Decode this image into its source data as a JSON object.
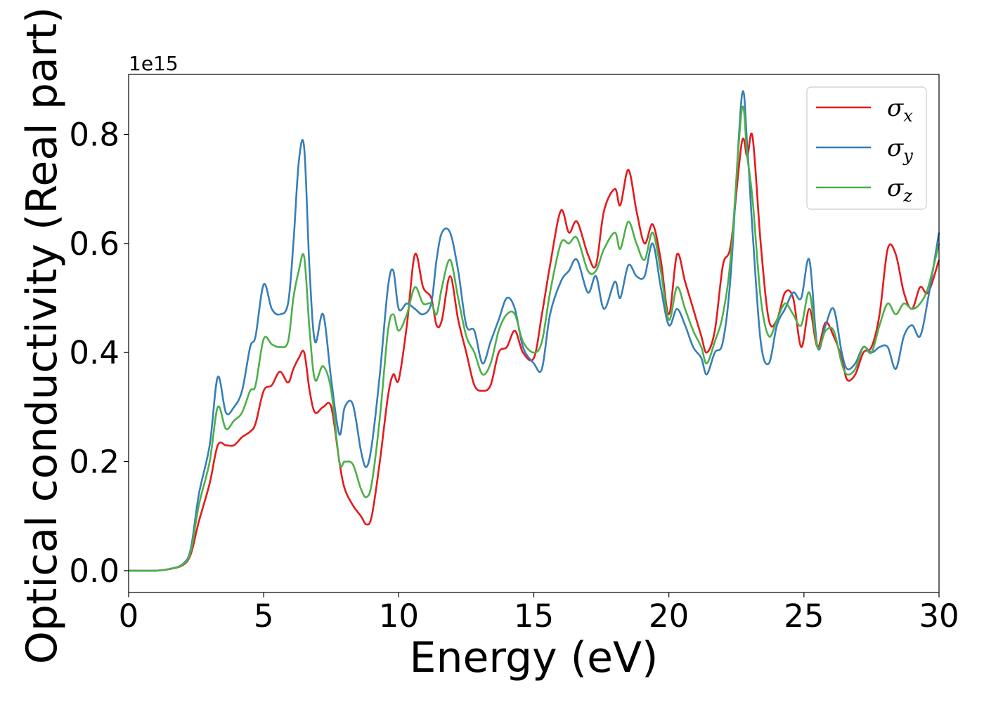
{
  "chart_data": {
    "type": "line",
    "title": "",
    "xlabel": "Energy (eV)",
    "ylabel": "Optical conductivity (Real part)",
    "y_offset_label": "1e15",
    "xlim": [
      0,
      30
    ],
    "ylim": [
      -0.04,
      0.91
    ],
    "xticks": [
      0,
      5,
      10,
      15,
      20,
      25,
      30
    ],
    "xtick_labels": [
      "0",
      "5",
      "10",
      "15",
      "20",
      "25",
      "30"
    ],
    "yticks": [
      0.0,
      0.2,
      0.4,
      0.6,
      0.8
    ],
    "ytick_labels": [
      "0.0",
      "0.2",
      "0.4",
      "0.6",
      "0.8"
    ],
    "grid": false,
    "legend_position": "top-right",
    "series": [
      {
        "name": "σx",
        "legend_base": "σ",
        "legend_sub": "x",
        "color": "#e41a1c",
        "points": [
          [
            0,
            0
          ],
          [
            1,
            0.0
          ],
          [
            1.5,
            0.003
          ],
          [
            2.0,
            0.01
          ],
          [
            2.3,
            0.03
          ],
          [
            2.6,
            0.09
          ],
          [
            3.0,
            0.16
          ],
          [
            3.3,
            0.23
          ],
          [
            3.6,
            0.23
          ],
          [
            3.9,
            0.23
          ],
          [
            4.2,
            0.245
          ],
          [
            4.5,
            0.255
          ],
          [
            4.7,
            0.27
          ],
          [
            5.0,
            0.33
          ],
          [
            5.3,
            0.34
          ],
          [
            5.6,
            0.365
          ],
          [
            5.9,
            0.345
          ],
          [
            6.1,
            0.37
          ],
          [
            6.3,
            0.39
          ],
          [
            6.5,
            0.4
          ],
          [
            6.7,
            0.33
          ],
          [
            6.9,
            0.29
          ],
          [
            7.2,
            0.3
          ],
          [
            7.5,
            0.3
          ],
          [
            7.8,
            0.2
          ],
          [
            8.0,
            0.15
          ],
          [
            8.3,
            0.12
          ],
          [
            8.6,
            0.1
          ],
          [
            8.8,
            0.085
          ],
          [
            9.0,
            0.1
          ],
          [
            9.3,
            0.2
          ],
          [
            9.6,
            0.32
          ],
          [
            9.8,
            0.36
          ],
          [
            10.0,
            0.35
          ],
          [
            10.3,
            0.45
          ],
          [
            10.6,
            0.58
          ],
          [
            10.9,
            0.52
          ],
          [
            11.2,
            0.5
          ],
          [
            11.4,
            0.45
          ],
          [
            11.6,
            0.46
          ],
          [
            11.9,
            0.54
          ],
          [
            12.2,
            0.46
          ],
          [
            12.5,
            0.4
          ],
          [
            12.8,
            0.34
          ],
          [
            13.1,
            0.33
          ],
          [
            13.4,
            0.34
          ],
          [
            13.7,
            0.4
          ],
          [
            14.0,
            0.41
          ],
          [
            14.3,
            0.44
          ],
          [
            14.6,
            0.4
          ],
          [
            15.0,
            0.39
          ],
          [
            15.3,
            0.47
          ],
          [
            15.6,
            0.56
          ],
          [
            16.0,
            0.66
          ],
          [
            16.3,
            0.62
          ],
          [
            16.6,
            0.64
          ],
          [
            17.0,
            0.58
          ],
          [
            17.3,
            0.56
          ],
          [
            17.6,
            0.66
          ],
          [
            18.0,
            0.7
          ],
          [
            18.2,
            0.67
          ],
          [
            18.5,
            0.735
          ],
          [
            18.8,
            0.66
          ],
          [
            19.1,
            0.6
          ],
          [
            19.4,
            0.635
          ],
          [
            19.7,
            0.57
          ],
          [
            20.0,
            0.47
          ],
          [
            20.3,
            0.58
          ],
          [
            20.6,
            0.53
          ],
          [
            20.9,
            0.48
          ],
          [
            21.2,
            0.43
          ],
          [
            21.4,
            0.4
          ],
          [
            21.7,
            0.44
          ],
          [
            22.0,
            0.56
          ],
          [
            22.3,
            0.6
          ],
          [
            22.7,
            0.785
          ],
          [
            22.9,
            0.76
          ],
          [
            23.1,
            0.795
          ],
          [
            23.4,
            0.6
          ],
          [
            23.7,
            0.46
          ],
          [
            24.0,
            0.46
          ],
          [
            24.3,
            0.51
          ],
          [
            24.6,
            0.5
          ],
          [
            24.9,
            0.41
          ],
          [
            25.2,
            0.48
          ],
          [
            25.5,
            0.41
          ],
          [
            25.8,
            0.455
          ],
          [
            26.1,
            0.43
          ],
          [
            26.4,
            0.39
          ],
          [
            26.6,
            0.35
          ],
          [
            26.9,
            0.36
          ],
          [
            27.2,
            0.4
          ],
          [
            27.5,
            0.41
          ],
          [
            27.8,
            0.47
          ],
          [
            28.1,
            0.59
          ],
          [
            28.4,
            0.58
          ],
          [
            28.7,
            0.51
          ],
          [
            29.0,
            0.48
          ],
          [
            29.3,
            0.52
          ],
          [
            29.6,
            0.51
          ],
          [
            30.0,
            0.57
          ]
        ]
      },
      {
        "name": "σy",
        "legend_base": "σ",
        "legend_sub": "y",
        "color": "#377eb8",
        "points": [
          [
            0,
            0
          ],
          [
            1,
            0.0
          ],
          [
            1.5,
            0.003
          ],
          [
            2.0,
            0.012
          ],
          [
            2.3,
            0.04
          ],
          [
            2.6,
            0.14
          ],
          [
            3.0,
            0.23
          ],
          [
            3.3,
            0.355
          ],
          [
            3.6,
            0.29
          ],
          [
            3.9,
            0.3
          ],
          [
            4.2,
            0.33
          ],
          [
            4.5,
            0.41
          ],
          [
            4.7,
            0.43
          ],
          [
            5.0,
            0.525
          ],
          [
            5.3,
            0.48
          ],
          [
            5.6,
            0.47
          ],
          [
            5.9,
            0.49
          ],
          [
            6.1,
            0.6
          ],
          [
            6.3,
            0.75
          ],
          [
            6.5,
            0.775
          ],
          [
            6.7,
            0.55
          ],
          [
            6.9,
            0.42
          ],
          [
            7.2,
            0.47
          ],
          [
            7.5,
            0.35
          ],
          [
            7.8,
            0.25
          ],
          [
            8.0,
            0.3
          ],
          [
            8.3,
            0.305
          ],
          [
            8.6,
            0.22
          ],
          [
            8.8,
            0.19
          ],
          [
            9.0,
            0.23
          ],
          [
            9.3,
            0.36
          ],
          [
            9.6,
            0.52
          ],
          [
            9.8,
            0.55
          ],
          [
            10.0,
            0.48
          ],
          [
            10.3,
            0.49
          ],
          [
            10.6,
            0.48
          ],
          [
            10.9,
            0.47
          ],
          [
            11.2,
            0.49
          ],
          [
            11.4,
            0.57
          ],
          [
            11.6,
            0.62
          ],
          [
            11.9,
            0.62
          ],
          [
            12.2,
            0.55
          ],
          [
            12.5,
            0.45
          ],
          [
            12.8,
            0.44
          ],
          [
            13.1,
            0.38
          ],
          [
            13.4,
            0.42
          ],
          [
            13.7,
            0.46
          ],
          [
            14.0,
            0.5
          ],
          [
            14.3,
            0.48
          ],
          [
            14.6,
            0.41
          ],
          [
            15.0,
            0.38
          ],
          [
            15.3,
            0.37
          ],
          [
            15.6,
            0.47
          ],
          [
            16.0,
            0.53
          ],
          [
            16.3,
            0.55
          ],
          [
            16.6,
            0.57
          ],
          [
            17.0,
            0.51
          ],
          [
            17.3,
            0.54
          ],
          [
            17.6,
            0.48
          ],
          [
            18.0,
            0.53
          ],
          [
            18.2,
            0.5
          ],
          [
            18.5,
            0.56
          ],
          [
            18.8,
            0.54
          ],
          [
            19.1,
            0.54
          ],
          [
            19.4,
            0.6
          ],
          [
            19.7,
            0.52
          ],
          [
            20.0,
            0.45
          ],
          [
            20.3,
            0.48
          ],
          [
            20.6,
            0.45
          ],
          [
            20.9,
            0.41
          ],
          [
            21.2,
            0.39
          ],
          [
            21.4,
            0.36
          ],
          [
            21.7,
            0.4
          ],
          [
            22.0,
            0.42
          ],
          [
            22.3,
            0.55
          ],
          [
            22.7,
            0.87
          ],
          [
            22.9,
            0.78
          ],
          [
            23.1,
            0.62
          ],
          [
            23.4,
            0.42
          ],
          [
            23.7,
            0.38
          ],
          [
            24.0,
            0.45
          ],
          [
            24.3,
            0.48
          ],
          [
            24.6,
            0.51
          ],
          [
            24.9,
            0.5
          ],
          [
            25.2,
            0.57
          ],
          [
            25.5,
            0.41
          ],
          [
            25.8,
            0.45
          ],
          [
            26.1,
            0.48
          ],
          [
            26.4,
            0.4
          ],
          [
            26.6,
            0.37
          ],
          [
            26.9,
            0.38
          ],
          [
            27.2,
            0.41
          ],
          [
            27.5,
            0.4
          ],
          [
            27.8,
            0.41
          ],
          [
            28.1,
            0.41
          ],
          [
            28.4,
            0.37
          ],
          [
            28.7,
            0.43
          ],
          [
            29.0,
            0.45
          ],
          [
            29.3,
            0.43
          ],
          [
            29.6,
            0.5
          ],
          [
            30.0,
            0.62
          ]
        ]
      },
      {
        "name": "σz",
        "legend_base": "σ",
        "legend_sub": "z",
        "color": "#4daf4a",
        "points": [
          [
            0,
            0
          ],
          [
            1,
            0.0
          ],
          [
            1.5,
            0.003
          ],
          [
            2.0,
            0.011
          ],
          [
            2.3,
            0.035
          ],
          [
            2.6,
            0.12
          ],
          [
            3.0,
            0.2
          ],
          [
            3.3,
            0.3
          ],
          [
            3.6,
            0.26
          ],
          [
            3.9,
            0.275
          ],
          [
            4.2,
            0.29
          ],
          [
            4.5,
            0.33
          ],
          [
            4.7,
            0.34
          ],
          [
            5.0,
            0.425
          ],
          [
            5.3,
            0.415
          ],
          [
            5.6,
            0.41
          ],
          [
            5.9,
            0.42
          ],
          [
            6.1,
            0.5
          ],
          [
            6.3,
            0.55
          ],
          [
            6.5,
            0.575
          ],
          [
            6.7,
            0.44
          ],
          [
            6.9,
            0.35
          ],
          [
            7.2,
            0.375
          ],
          [
            7.5,
            0.33
          ],
          [
            7.8,
            0.2
          ],
          [
            8.0,
            0.2
          ],
          [
            8.3,
            0.195
          ],
          [
            8.6,
            0.15
          ],
          [
            8.8,
            0.135
          ],
          [
            9.0,
            0.16
          ],
          [
            9.3,
            0.28
          ],
          [
            9.6,
            0.44
          ],
          [
            9.8,
            0.47
          ],
          [
            10.0,
            0.44
          ],
          [
            10.3,
            0.47
          ],
          [
            10.6,
            0.52
          ],
          [
            10.9,
            0.49
          ],
          [
            11.2,
            0.49
          ],
          [
            11.4,
            0.47
          ],
          [
            11.6,
            0.52
          ],
          [
            11.9,
            0.57
          ],
          [
            12.2,
            0.5
          ],
          [
            12.5,
            0.43
          ],
          [
            12.8,
            0.4
          ],
          [
            13.1,
            0.36
          ],
          [
            13.4,
            0.38
          ],
          [
            13.7,
            0.44
          ],
          [
            14.0,
            0.47
          ],
          [
            14.3,
            0.47
          ],
          [
            14.6,
            0.42
          ],
          [
            15.0,
            0.4
          ],
          [
            15.3,
            0.42
          ],
          [
            15.6,
            0.51
          ],
          [
            16.0,
            0.6
          ],
          [
            16.3,
            0.6
          ],
          [
            16.6,
            0.61
          ],
          [
            17.0,
            0.55
          ],
          [
            17.3,
            0.55
          ],
          [
            17.6,
            0.59
          ],
          [
            18.0,
            0.62
          ],
          [
            18.2,
            0.59
          ],
          [
            18.5,
            0.64
          ],
          [
            18.8,
            0.6
          ],
          [
            19.1,
            0.57
          ],
          [
            19.4,
            0.62
          ],
          [
            19.7,
            0.55
          ],
          [
            20.0,
            0.46
          ],
          [
            20.3,
            0.52
          ],
          [
            20.6,
            0.48
          ],
          [
            20.9,
            0.44
          ],
          [
            21.2,
            0.41
          ],
          [
            21.4,
            0.38
          ],
          [
            21.7,
            0.42
          ],
          [
            22.0,
            0.47
          ],
          [
            22.3,
            0.58
          ],
          [
            22.7,
            0.845
          ],
          [
            22.9,
            0.76
          ],
          [
            23.1,
            0.68
          ],
          [
            23.4,
            0.5
          ],
          [
            23.7,
            0.43
          ],
          [
            24.0,
            0.46
          ],
          [
            24.3,
            0.49
          ],
          [
            24.6,
            0.47
          ],
          [
            24.9,
            0.45
          ],
          [
            25.2,
            0.51
          ],
          [
            25.5,
            0.41
          ],
          [
            25.8,
            0.44
          ],
          [
            26.1,
            0.44
          ],
          [
            26.4,
            0.38
          ],
          [
            26.6,
            0.36
          ],
          [
            26.9,
            0.37
          ],
          [
            27.2,
            0.41
          ],
          [
            27.5,
            0.4
          ],
          [
            27.8,
            0.45
          ],
          [
            28.1,
            0.49
          ],
          [
            28.4,
            0.47
          ],
          [
            28.7,
            0.49
          ],
          [
            29.0,
            0.48
          ],
          [
            29.3,
            0.49
          ],
          [
            29.6,
            0.52
          ],
          [
            30.0,
            0.6
          ]
        ]
      }
    ]
  }
}
